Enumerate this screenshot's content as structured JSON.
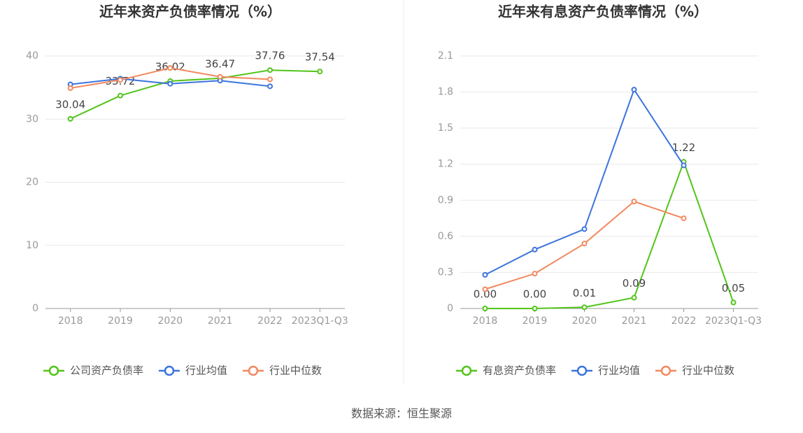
{
  "chart_data": [
    {
      "type": "line",
      "title": "近年来资产负债率情况（%）",
      "categories": [
        "2018",
        "2019",
        "2020",
        "2021",
        "2022",
        "2023Q1-Q3"
      ],
      "series": [
        {
          "name": "公司资产负债率",
          "color": "#52c41a",
          "values": [
            30.04,
            33.72,
            36.02,
            36.47,
            37.76,
            37.54
          ],
          "show_labels": true
        },
        {
          "name": "行业均值",
          "color": "#3b74dd",
          "values": [
            35.5,
            36.4,
            35.6,
            36.1,
            35.2,
            null
          ]
        },
        {
          "name": "行业中位数",
          "color": "#f2895f",
          "values": [
            34.9,
            36.2,
            38.1,
            36.7,
            36.3,
            null
          ]
        }
      ],
      "ylim": [
        0,
        40
      ],
      "yticks": [
        0,
        10,
        20,
        30,
        40
      ],
      "grid": true,
      "legend": "bottom"
    },
    {
      "type": "line",
      "title": "近年来有息资产负债率情况（%）",
      "categories": [
        "2018",
        "2019",
        "2020",
        "2021",
        "2022",
        "2023Q1-Q3"
      ],
      "series": [
        {
          "name": "有息资产负债率",
          "color": "#52c41a",
          "values": [
            0,
            0,
            0.01,
            0.09,
            1.22,
            0.05
          ],
          "value_labels": [
            "0.00",
            "0.00",
            "0.01",
            "0.09",
            "1.22",
            "0.05"
          ],
          "show_labels": true
        },
        {
          "name": "行业均值",
          "color": "#3b74dd",
          "values": [
            0.28,
            0.49,
            0.66,
            1.82,
            1.19,
            null
          ]
        },
        {
          "name": "行业中位数",
          "color": "#f2895f",
          "values": [
            0.16,
            0.29,
            0.54,
            0.89,
            0.75,
            null
          ]
        }
      ],
      "ylim": [
        0,
        2.1
      ],
      "yticks": [
        0,
        0.3,
        0.6,
        0.9,
        1.2,
        1.5,
        1.8,
        2.1
      ],
      "grid": true,
      "legend": "bottom"
    }
  ],
  "source": "数据来源：恒生聚源"
}
